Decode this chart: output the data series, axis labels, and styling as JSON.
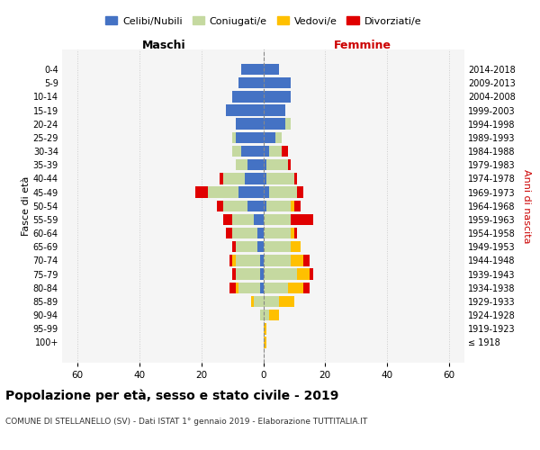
{
  "age_groups": [
    "100+",
    "95-99",
    "90-94",
    "85-89",
    "80-84",
    "75-79",
    "70-74",
    "65-69",
    "60-64",
    "55-59",
    "50-54",
    "45-49",
    "40-44",
    "35-39",
    "30-34",
    "25-29",
    "20-24",
    "15-19",
    "10-14",
    "5-9",
    "0-4"
  ],
  "birth_years": [
    "≤ 1918",
    "1919-1923",
    "1924-1928",
    "1929-1933",
    "1934-1938",
    "1939-1943",
    "1944-1948",
    "1949-1953",
    "1954-1958",
    "1959-1963",
    "1964-1968",
    "1969-1973",
    "1974-1978",
    "1979-1983",
    "1984-1988",
    "1989-1993",
    "1994-1998",
    "1999-2003",
    "2004-2008",
    "2009-2013",
    "2014-2018"
  ],
  "males": {
    "celibe": [
      0,
      0,
      0,
      0,
      1,
      1,
      1,
      2,
      2,
      3,
      5,
      8,
      6,
      5,
      7,
      9,
      9,
      12,
      10,
      8,
      7
    ],
    "coniugato": [
      0,
      0,
      1,
      3,
      7,
      8,
      8,
      7,
      8,
      7,
      8,
      10,
      7,
      4,
      3,
      1,
      0,
      0,
      0,
      0,
      0
    ],
    "vedovo": [
      0,
      0,
      0,
      1,
      1,
      0,
      1,
      0,
      0,
      0,
      0,
      0,
      0,
      0,
      0,
      0,
      0,
      0,
      0,
      0,
      0
    ],
    "divorziato": [
      0,
      0,
      0,
      0,
      2,
      1,
      1,
      1,
      2,
      3,
      2,
      4,
      1,
      0,
      0,
      0,
      0,
      0,
      0,
      0,
      0
    ]
  },
  "females": {
    "nubile": [
      0,
      0,
      0,
      0,
      0,
      0,
      0,
      0,
      0,
      0,
      1,
      2,
      1,
      1,
      2,
      4,
      7,
      7,
      9,
      9,
      5
    ],
    "coniugata": [
      0,
      0,
      2,
      5,
      8,
      11,
      9,
      9,
      9,
      9,
      8,
      9,
      9,
      7,
      4,
      2,
      2,
      0,
      0,
      0,
      0
    ],
    "vedova": [
      1,
      1,
      3,
      5,
      5,
      4,
      4,
      3,
      1,
      0,
      1,
      0,
      0,
      0,
      0,
      0,
      0,
      0,
      0,
      0,
      0
    ],
    "divorziata": [
      0,
      0,
      0,
      0,
      2,
      1,
      2,
      0,
      1,
      7,
      2,
      2,
      1,
      1,
      2,
      0,
      0,
      0,
      0,
      0,
      0
    ]
  },
  "colors": {
    "celibe": "#4472c4",
    "coniugato": "#c5d9a0",
    "vedovo": "#ffc000",
    "divorziato": "#e00000"
  },
  "xlim": 65,
  "title": "Popolazione per età, sesso e stato civile - 2019",
  "subtitle": "COMUNE DI STELLANELLO (SV) - Dati ISTAT 1° gennaio 2019 - Elaborazione TUTTITALIA.IT",
  "legend_labels": [
    "Celibi/Nubili",
    "Coniugati/e",
    "Vedovi/e",
    "Divorziati/e"
  ],
  "xlabel_left": "Maschi",
  "xlabel_right": "Femmine",
  "ylabel_left": "Fasce di età",
  "ylabel_right": "Anni di nascita",
  "background_color": "#f5f5f5"
}
